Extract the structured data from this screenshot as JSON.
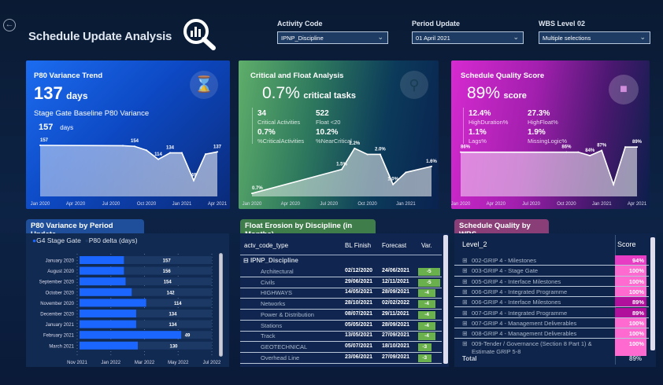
{
  "header": {
    "title": "Schedule Update Analysis",
    "back_icon": "back-arrow-icon",
    "logo_icon": "magnifier-chart-icon"
  },
  "filters": [
    {
      "label": "Activity Code",
      "value": "IPNP_Discipline"
    },
    {
      "label": "Period Update",
      "value": "01 April 2021"
    },
    {
      "label": "WBS Level 02",
      "value": "Multiple selections"
    }
  ],
  "colors": {
    "blue_card": "#1565e0",
    "green_card": "#5fae6a",
    "magenta_card": "#d426c8",
    "bar_blue": "#1a66ff",
    "float_bar": "#6ab04c",
    "score_100": "#ff6ad0",
    "score_94": "#e93cc4",
    "score_89": "#b0109c"
  },
  "p80_card": {
    "title": "P80 Variance Trend",
    "value": "137",
    "unit": "days",
    "baseline_label": "Stage Gate Baseline P80 Variance",
    "baseline_value": "157",
    "baseline_unit": "days",
    "icon": "hourglass-icon"
  },
  "critical_card": {
    "title": "Critical and Float Analysis",
    "value": "0.7%",
    "unit": "critical tasks",
    "icon": "search-icon",
    "kpis": [
      {
        "value": "34",
        "label": "Critical Activities"
      },
      {
        "value": "522",
        "label": "Float <20"
      },
      {
        "value": "0.7%",
        "label": "%CriticalActivities"
      },
      {
        "value": "10.2%",
        "label": "%NearCritical"
      }
    ]
  },
  "quality_card": {
    "title": "Schedule Quality Score",
    "value": "89%",
    "unit": "score",
    "icon": "paint-roller-icon",
    "kpis": [
      {
        "value": "12.4%",
        "label": "HighDuration%"
      },
      {
        "value": "27.3%",
        "label": "HighFloat%"
      },
      {
        "value": "1.1%",
        "label": "Lags%"
      },
      {
        "value": "1.9%",
        "label": "MissingLogic%"
      }
    ]
  },
  "chart_data": [
    {
      "type": "area",
      "x_ticks": [
        "Jan 2020",
        "Apr 2020",
        "Jul 2020",
        "Oct 2020",
        "Jan 2021",
        "Apr 2021"
      ],
      "points": [
        {
          "x": "2020-01",
          "y": 157,
          "label": "157"
        },
        {
          "x": "2020-08",
          "y": 156
        },
        {
          "x": "2020-09",
          "y": 154,
          "label": "154"
        },
        {
          "x": "2020-10",
          "y": 142
        },
        {
          "x": "2020-11",
          "y": 114,
          "label": "114"
        },
        {
          "x": "2020-12",
          "y": 134,
          "label": "134"
        },
        {
          "x": "2021-01",
          "y": 134
        },
        {
          "x": "2021-02",
          "y": 49,
          "label": "49"
        },
        {
          "x": "2021-03",
          "y": 130
        },
        {
          "x": "2021-04",
          "y": 137,
          "label": "137"
        }
      ],
      "ylim": [
        0,
        157
      ]
    },
    {
      "type": "area",
      "x_ticks": [
        "Jan 2020",
        "Apr 2020",
        "Jul 2020",
        "Oct 2020",
        "Jan 2021"
      ],
      "points": [
        {
          "x": "2020-01",
          "y": 0.7,
          "label": "0.7%"
        },
        {
          "x": "2020-08",
          "y": 1.5,
          "label": "1.5%"
        },
        {
          "x": "2020-09",
          "y": 2.2,
          "label": "2.2%"
        },
        {
          "x": "2020-10",
          "y": 2.0
        },
        {
          "x": "2020-11",
          "y": 2.0,
          "label": "2.0%"
        },
        {
          "x": "2020-12",
          "y": 1.0,
          "label": "1.0%"
        },
        {
          "x": "2021-01",
          "y": 1.4
        },
        {
          "x": "2021-03",
          "y": 1.6,
          "label": "1.6%"
        }
      ],
      "ylim": [
        0.6,
        2.3
      ]
    },
    {
      "type": "area",
      "x_ticks": [
        "Jan 2020",
        "Apr 2020",
        "Jul 2020",
        "Oct 2020",
        "Jan 2021",
        "Apr 2021"
      ],
      "points": [
        {
          "x": "2020-01",
          "y": 86,
          "label": "86%"
        },
        {
          "x": "2020-10",
          "y": 86,
          "label": "86%"
        },
        {
          "x": "2020-11",
          "y": 86
        },
        {
          "x": "2020-12",
          "y": 84,
          "label": "84%"
        },
        {
          "x": "2021-01",
          "y": 87,
          "label": "87%"
        },
        {
          "x": "2021-02",
          "y": 67
        },
        {
          "x": "2021-03",
          "y": 89
        },
        {
          "x": "2021-04",
          "y": 89,
          "label": "89%"
        }
      ],
      "ylim": [
        60,
        90
      ]
    },
    {
      "type": "bar",
      "title": "P80 Variance by Period Update",
      "legend": [
        "G4 Stage Gate",
        "P80 delta (days)"
      ],
      "x_ticks": [
        "Nov 2021",
        "Jan 2022",
        "Mar 2022",
        "May 2022",
        "Jul 2022"
      ],
      "xlim": [
        "2021-11-01",
        "2022-07-01"
      ],
      "categories": [
        "January 2020",
        "August 2020",
        "September 2020",
        "October 2020",
        "November 2020",
        "December 2020",
        "January 2021",
        "February 2021",
        "March 2021"
      ],
      "g4_stage_gate": [
        "2022-01-24",
        "2022-01-24",
        "2022-01-27",
        "2022-02-07",
        "2022-03-05",
        "2022-02-15",
        "2022-02-15",
        "2022-05-07",
        "2022-02-18"
      ],
      "p80_delta": [
        157,
        156,
        154,
        142,
        114,
        134,
        134,
        49,
        130
      ]
    }
  ],
  "float_table": {
    "title": "Float Erosion by Discipline (in Months)",
    "columns": [
      "actv_code_type",
      "BL Finish",
      "Forecast",
      "Var."
    ],
    "group": "IPNP_Discipline",
    "rows": [
      {
        "name": "Architectural",
        "bl": "02/12/2020",
        "fc": "24/06/2021",
        "var": -5
      },
      {
        "name": "Civils",
        "bl": "29/06/2021",
        "fc": "12/11/2021",
        "var": -5
      },
      {
        "name": "HIGHWAYS",
        "bl": "14/05/2021",
        "fc": "28/09/2021",
        "var": -4
      },
      {
        "name": "Networks",
        "bl": "28/10/2021",
        "fc": "02/02/2022",
        "var": -4
      },
      {
        "name": "Power & Distribution",
        "bl": "08/07/2021",
        "fc": "29/11/2021",
        "var": -4
      },
      {
        "name": "Stations",
        "bl": "05/05/2021",
        "fc": "28/09/2021",
        "var": -4
      },
      {
        "name": "Track",
        "bl": "13/05/2021",
        "fc": "27/09/2021",
        "var": -4
      },
      {
        "name": "GEOTECHNICAL",
        "bl": "05/07/2021",
        "fc": "18/10/2021",
        "var": -3
      },
      {
        "name": "Overhead Line",
        "bl": "23/06/2021",
        "fc": "27/09/2021",
        "var": -3
      }
    ]
  },
  "wbs_table": {
    "title": "Schedule Quality by WBS",
    "columns": [
      "Level_2",
      "Score"
    ],
    "rows": [
      {
        "name": "002-GRIP 4 - Milestones",
        "score": "94%"
      },
      {
        "name": "003-GRIP 4 - Stage Gate",
        "score": "100%"
      },
      {
        "name": "005-GRIP 4 - Interface Milestones",
        "score": "100%"
      },
      {
        "name": "006-GRIP 4 - Integrated Programme",
        "score": "100%"
      },
      {
        "name": "006-GRIP 4 - Interface Milestones",
        "score": "89%"
      },
      {
        "name": "007-GRIP 4 - Integrated Programme",
        "score": "89%"
      },
      {
        "name": "007-GRIP 4 - Management Deliverables",
        "score": "100%"
      },
      {
        "name": "008-GRIP 4 - Management Deliverables",
        "score": "100%"
      },
      {
        "name": "009-Tender / Governance (Section 8 Part 1) & Estimate GRIP 5-8",
        "score": "100%"
      }
    ],
    "total_label": "Total",
    "total_score": "89%"
  }
}
